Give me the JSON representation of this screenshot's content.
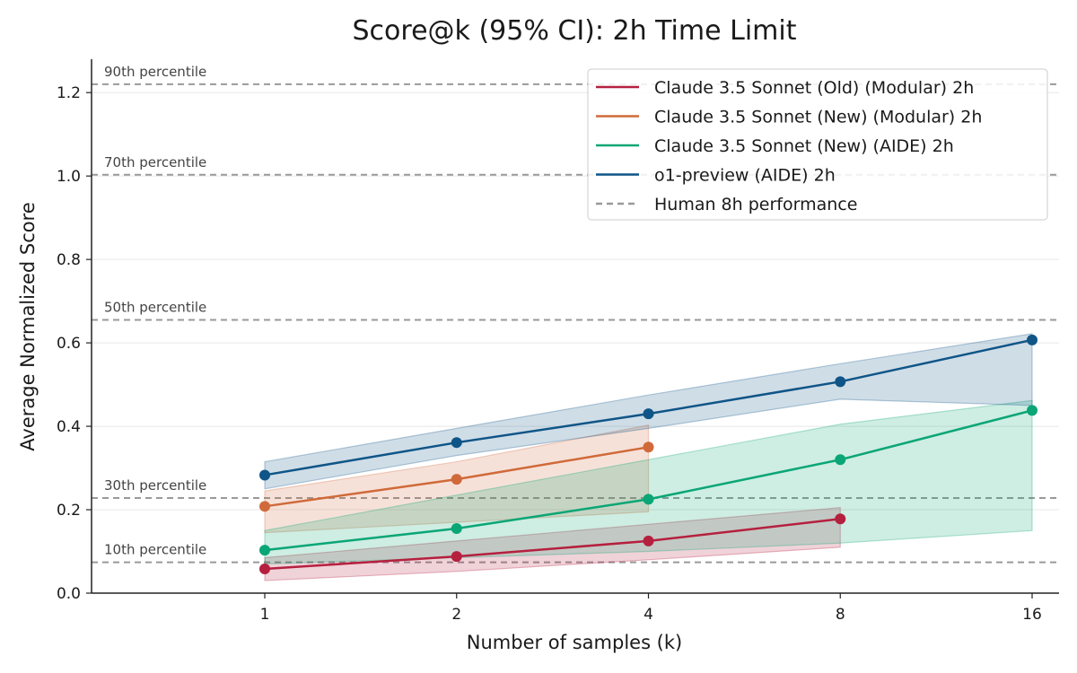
{
  "chart_data": {
    "type": "line",
    "title": "Score@k (95% CI): 2h Time Limit",
    "xlabel": "Number of samples (k)",
    "ylabel": "Average Normalized Score",
    "x_scale": "log2",
    "x_ticks": [
      1,
      2,
      4,
      8,
      16
    ],
    "x_tick_labels": [
      "1",
      "2",
      "4",
      "8",
      "16"
    ],
    "ylim": [
      0,
      1.28
    ],
    "y_ticks": [
      0.0,
      0.2,
      0.4,
      0.6,
      0.8,
      1.0,
      1.2
    ],
    "y_tick_labels": [
      "0.0",
      "0.2",
      "0.4",
      "0.6",
      "0.8",
      "1.0",
      "1.2"
    ],
    "grid": "horizontal",
    "legend_position": "top-right",
    "series": [
      {
        "name": "Claude 3.5 Sonnet (Old) (Modular) 2h",
        "color": "#b5203f",
        "x": [
          1,
          2,
          4,
          8
        ],
        "values": [
          0.058,
          0.088,
          0.125,
          0.178
        ],
        "ci_lower": [
          0.03,
          0.052,
          0.08,
          0.11
        ],
        "ci_upper": [
          0.085,
          0.125,
          0.165,
          0.205
        ]
      },
      {
        "name": "Claude 3.5 Sonnet (New) (Modular) 2h",
        "color": "#d06a3a",
        "x": [
          1,
          2,
          4
        ],
        "values": [
          0.208,
          0.273,
          0.35
        ],
        "ci_lower": [
          0.145,
          0.17,
          0.195
        ],
        "ci_upper": [
          0.245,
          0.315,
          0.403
        ]
      },
      {
        "name": "Claude 3.5 Sonnet (New) (AIDE) 2h",
        "color": "#0aa675",
        "x": [
          1,
          2,
          4,
          8,
          16
        ],
        "values": [
          0.103,
          0.155,
          0.225,
          0.32,
          0.438
        ],
        "ci_lower": [
          0.07,
          0.085,
          0.1,
          0.12,
          0.15
        ],
        "ci_upper": [
          0.15,
          0.235,
          0.32,
          0.405,
          0.462
        ]
      },
      {
        "name": "o1-preview (AIDE) 2h",
        "color": "#0f5587",
        "x": [
          1,
          2,
          4,
          8,
          16
        ],
        "values": [
          0.283,
          0.361,
          0.43,
          0.507,
          0.607
        ],
        "ci_lower": [
          0.25,
          0.33,
          0.395,
          0.465,
          0.45
        ],
        "ci_upper": [
          0.315,
          0.395,
          0.475,
          0.55,
          0.622
        ]
      }
    ],
    "reference_lines": [
      {
        "label": "90th percentile",
        "value": 1.22
      },
      {
        "label": "70th percentile",
        "value": 1.003
      },
      {
        "label": "50th percentile",
        "value": 0.655
      },
      {
        "label": "30th percentile",
        "value": 0.228
      },
      {
        "label": "10th percentile",
        "value": 0.074
      }
    ],
    "reference_style": {
      "name": "Human 8h performance",
      "color": "#999999"
    }
  }
}
